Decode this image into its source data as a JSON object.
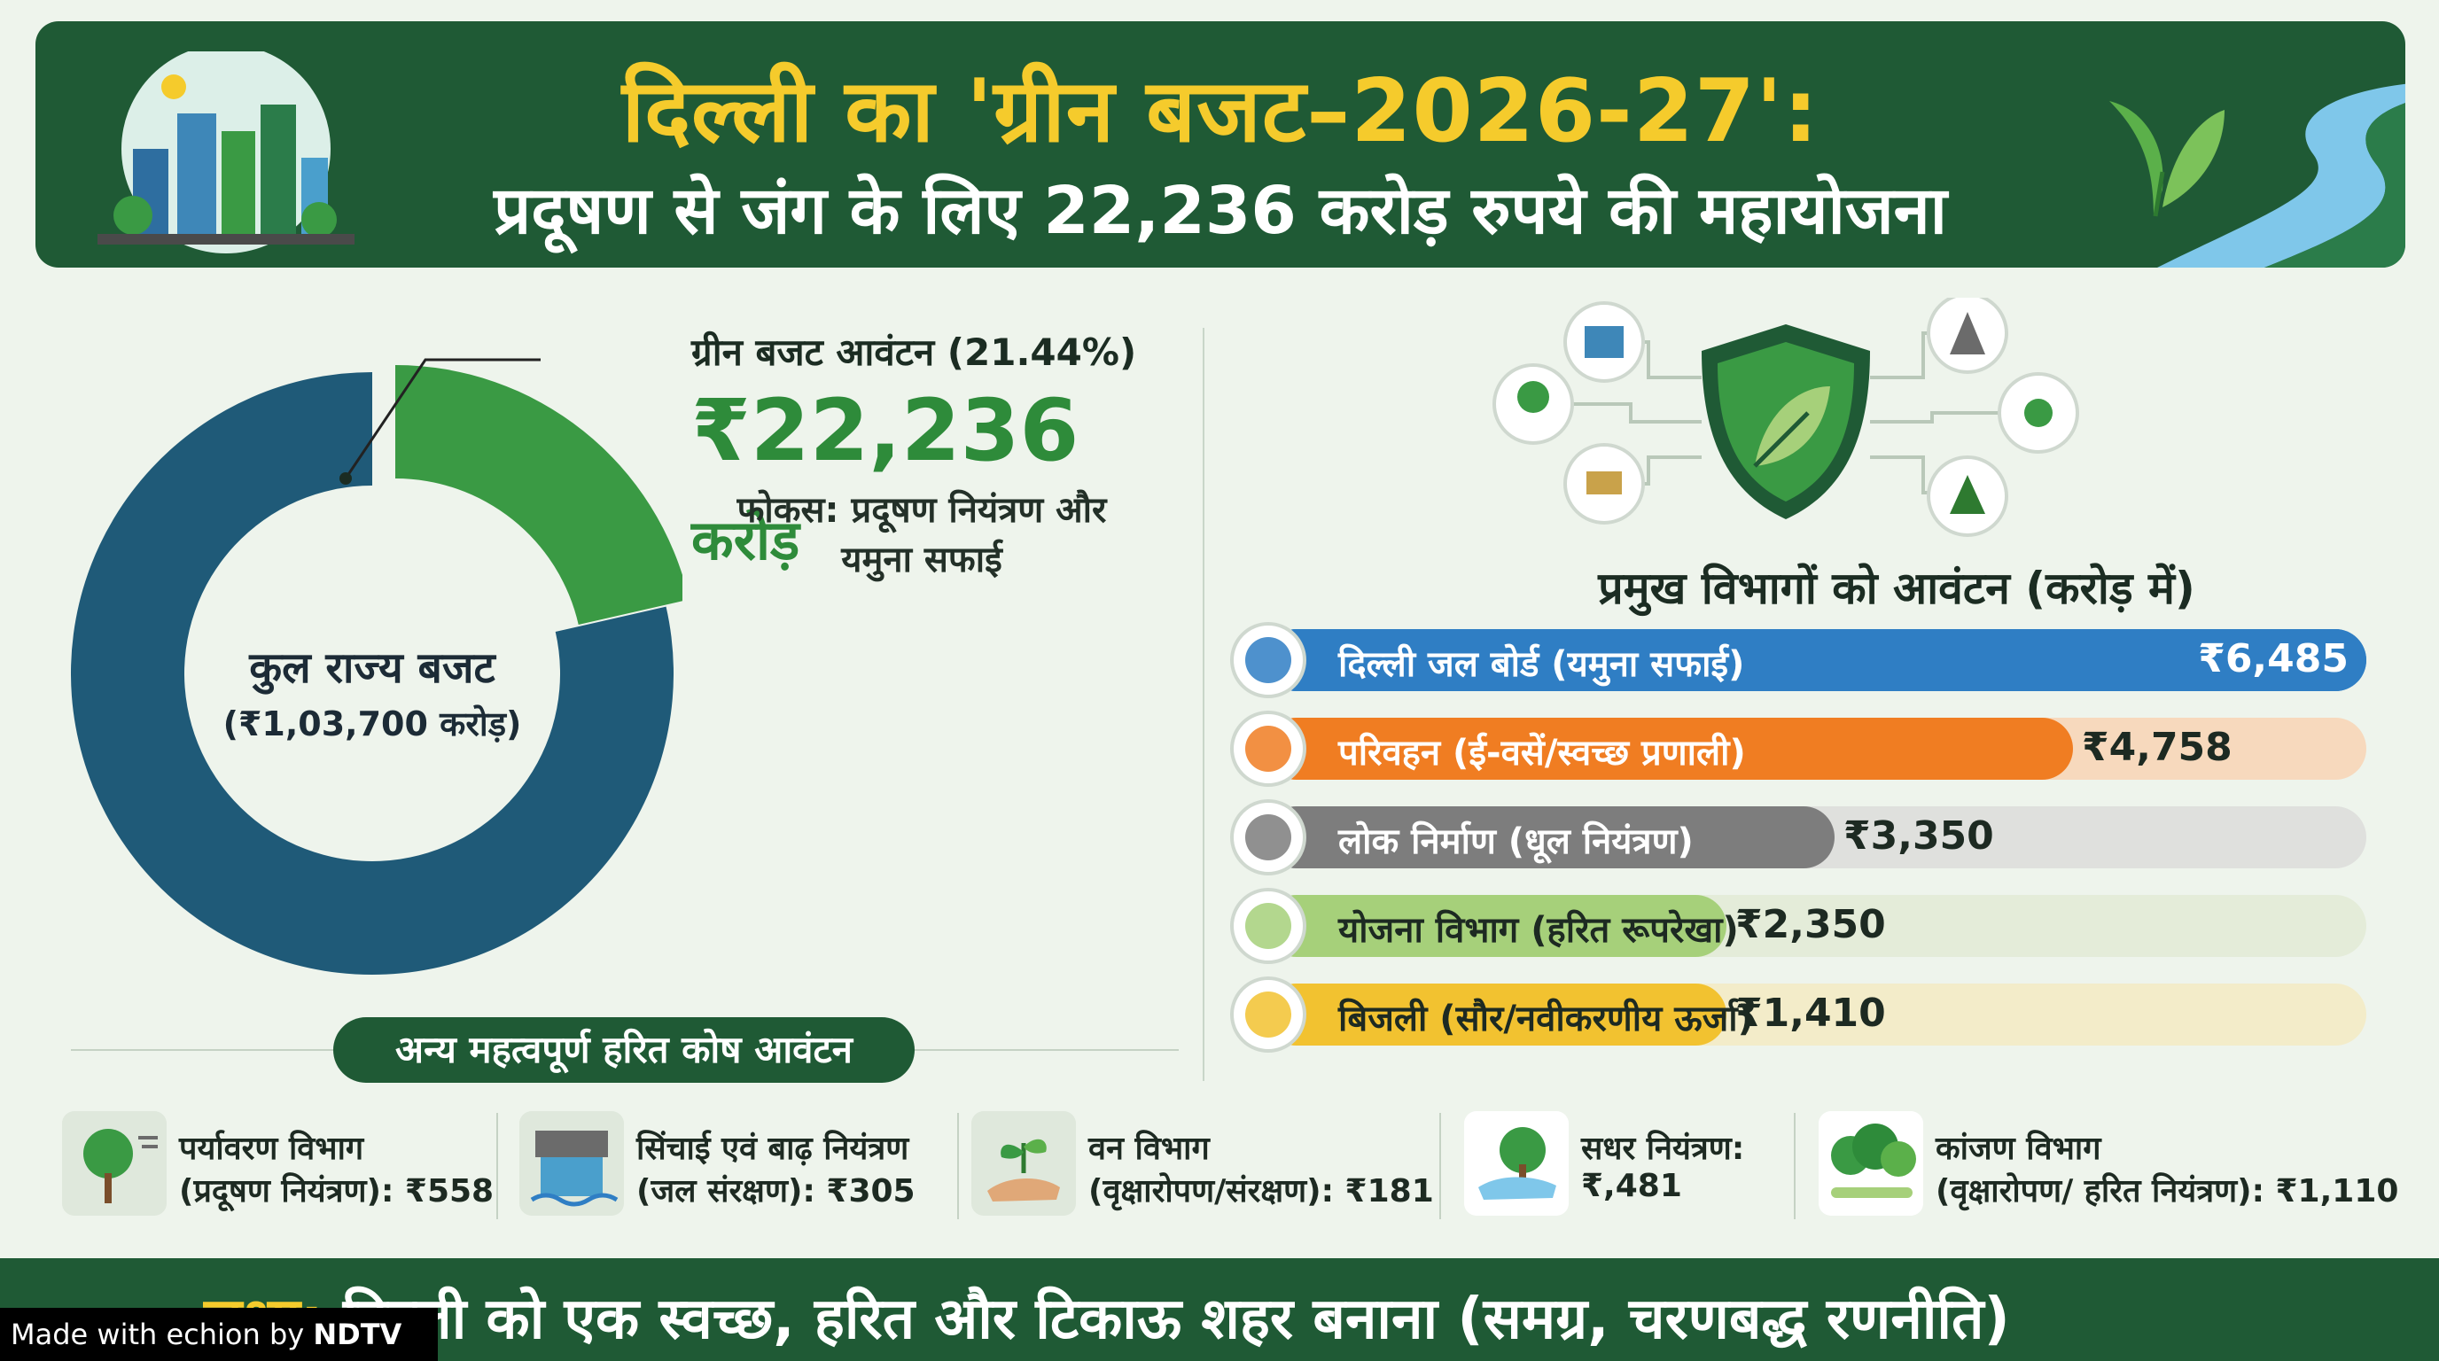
{
  "header": {
    "title": "दिल्ली का 'ग्रीन बजट–2026-27':",
    "subtitle": "प्रदूषण से जंग के लिए 22,236 करोड़ रुपये की महायोजना"
  },
  "donut": {
    "center_title": "कुल राज्य बजट",
    "center_subtitle": "(₹1,03,700 करोड़)",
    "green_label": "ग्रीन बजट आवंटन (21.44%)",
    "green_amount": "₹22,236",
    "green_amount_unit": "करोड़",
    "focus_line1": "फोकस: प्रदूषण नियंत्रण और",
    "focus_line2": "यमुना सफाई",
    "green_share": 21.44,
    "colors": {
      "green": "#3a9a44",
      "blue": "#1f5a78"
    }
  },
  "departments": {
    "heading": "प्रमुख विभागों को आवंटन (करोड़ में)",
    "max_value": 6485,
    "items": [
      {
        "label": "दिल्ली जल बोर्ड (यमुना सफाई)",
        "value_text": "₹6,485",
        "value": 6485,
        "icon": "water-drop-icon",
        "fill": "#2f7ec4",
        "track": "#2f7ec4",
        "label_light": true
      },
      {
        "label": "परिवहन (ई-वसें/स्वच्छ प्रणाली)",
        "value_text": "₹4,758",
        "value": 4758,
        "icon": "bus-icon",
        "fill": "#f07d22",
        "track": "#f7d9bd",
        "label_light": true
      },
      {
        "label": "लोक निर्माण (धूल नियंत्रण)",
        "value_text": "₹3,350",
        "value": 3350,
        "icon": "road-dust-icon",
        "fill": "#7d7d7d",
        "track": "#dfe0dd",
        "label_light": true
      },
      {
        "label": "योजना विभाग (हरित रूपरेखा)",
        "value_text": "₹2,350",
        "value": 2350,
        "icon": "gear-leaf-icon",
        "fill": "#a6d07a",
        "track": "#e4ecd9",
        "label_light": false
      },
      {
        "label": "बिजली (सौर/नवीकरणीय ऊर्जा)",
        "value_text": "₹1,410",
        "value": 1410,
        "icon": "solar-panel-icon",
        "fill": "#f2c230",
        "track": "#f3ecc9",
        "label_light": false
      }
    ]
  },
  "other_funds": {
    "heading": "अन्य महत्वपूर्ण हरित कोष आवंटन",
    "items": [
      {
        "line1": "पर्यावरण विभाग",
        "line2": "(प्रदूषण नियंत्रण): ₹558",
        "icon": "tree-wind-icon"
      },
      {
        "line1": "सिंचाई एवं बाढ़ नियंत्रण",
        "line2": "(जल संरक्षण): ₹305",
        "icon": "dam-icon"
      },
      {
        "line1": "वन विभाग",
        "line2": "(वृक्षारोपण/संरक्षण): ₹181",
        "icon": "sapling-hand-icon"
      },
      {
        "line1": "सधर नियंत्रण:",
        "line2": "₹,481",
        "icon": "hand-tree-icon"
      },
      {
        "line1": "कांजण विभाग",
        "line2": "(वृक्षारोपण/ हरित नियंत्रण): ₹1,110",
        "icon": "forest-icon"
      }
    ]
  },
  "footer": {
    "lead": "लक्ष्य:",
    "text": " दिल्ली को एक स्वच्छ, हरित और टिकाऊ शहर बनाना (समग्र, चरणबद्ध रणनीति)"
  },
  "watermark": {
    "prefix": "Made with ",
    "brand": "echion",
    "by": " by ",
    "org": "NDTV"
  }
}
